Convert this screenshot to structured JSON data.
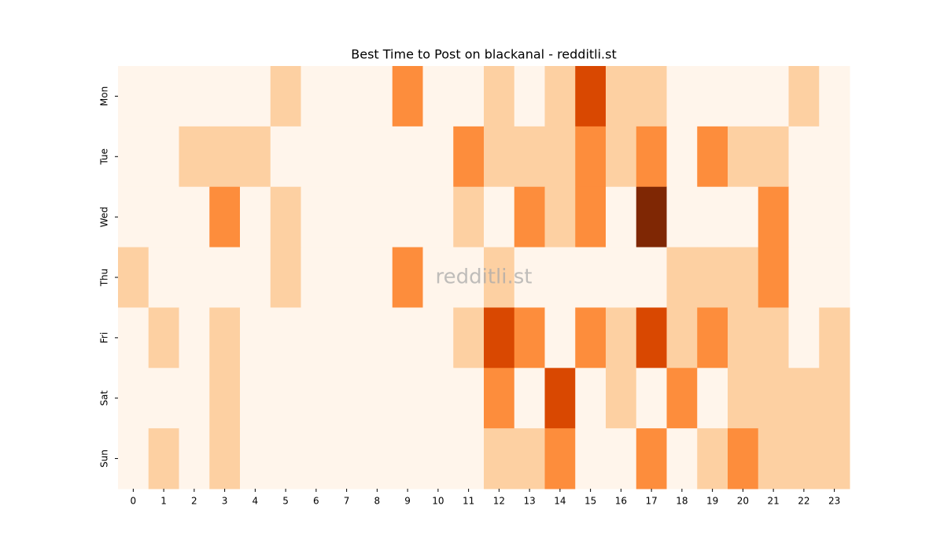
{
  "chart_data": {
    "type": "heatmap",
    "title": "Best Time to Post on blackanal - redditli.st",
    "watermark": "redditli.st",
    "x_categories": [
      0,
      1,
      2,
      3,
      4,
      5,
      6,
      7,
      8,
      9,
      10,
      11,
      12,
      13,
      14,
      15,
      16,
      17,
      18,
      19,
      20,
      21,
      22,
      23
    ],
    "y_categories": [
      "Mon",
      "Tue",
      "Wed",
      "Thu",
      "Fri",
      "Sat",
      "Sun"
    ],
    "colors": [
      "#fff5eb",
      "#fdd0a2",
      "#fd8d3c",
      "#d94801",
      "#7f2704"
    ],
    "values": [
      [
        0,
        0,
        0,
        0,
        0,
        1,
        0,
        0,
        0,
        2,
        0,
        0,
        1,
        0,
        1,
        3,
        1,
        1,
        0,
        0,
        0,
        0,
        1,
        0
      ],
      [
        0,
        0,
        1,
        1,
        1,
        0,
        0,
        0,
        0,
        0,
        0,
        2,
        1,
        1,
        1,
        2,
        1,
        2,
        0,
        2,
        1,
        1,
        0,
        0
      ],
      [
        0,
        0,
        0,
        2,
        0,
        1,
        0,
        0,
        0,
        0,
        0,
        1,
        0,
        2,
        1,
        2,
        0,
        4,
        0,
        0,
        0,
        2,
        0,
        0
      ],
      [
        1,
        0,
        0,
        0,
        0,
        1,
        0,
        0,
        0,
        2,
        0,
        0,
        1,
        0,
        0,
        0,
        0,
        0,
        1,
        1,
        1,
        2,
        0,
        0
      ],
      [
        0,
        1,
        0,
        1,
        0,
        0,
        0,
        0,
        0,
        0,
        0,
        1,
        3,
        2,
        0,
        2,
        1,
        3,
        1,
        2,
        1,
        1,
        0,
        1
      ],
      [
        0,
        0,
        0,
        1,
        0,
        0,
        0,
        0,
        0,
        0,
        0,
        0,
        2,
        0,
        3,
        0,
        1,
        0,
        2,
        0,
        1,
        1,
        1,
        1
      ],
      [
        0,
        1,
        0,
        1,
        0,
        0,
        0,
        0,
        0,
        0,
        0,
        0,
        1,
        1,
        2,
        0,
        0,
        2,
        0,
        1,
        2,
        1,
        1,
        1
      ]
    ]
  }
}
